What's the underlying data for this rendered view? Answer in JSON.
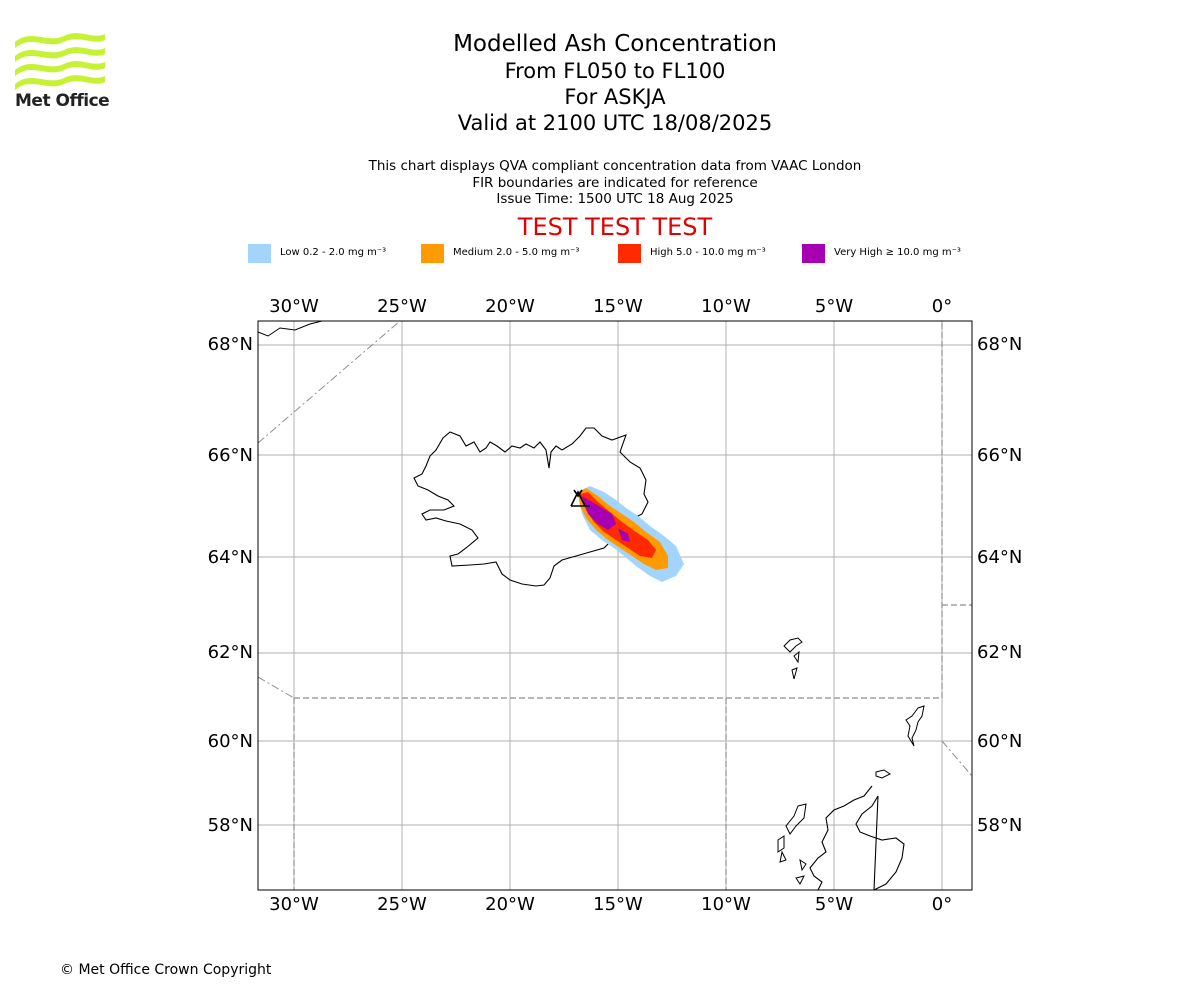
{
  "logo": {
    "text": "Met Office",
    "color": "#c6f135"
  },
  "title": {
    "line1": "Modelled Ash Concentration",
    "line2": "From FL050 to FL100",
    "line3": "For ASKJA",
    "line4": "Valid at 2100 UTC 18/08/2025"
  },
  "subtitle": {
    "line1": "This chart displays QVA compliant concentration data from VAAC London",
    "line2": "FIR boundaries are indicated for reference",
    "line3": "Issue Time: 1500 UTC 18 Aug 2025"
  },
  "test_banner": {
    "text": "TEST TEST TEST",
    "color": "#e00000"
  },
  "legend": [
    {
      "label": "Low 0.2 - 2.0 mg m⁻³",
      "color": "#a3d4fb"
    },
    {
      "label": "Medium 2.0 - 5.0 mg m⁻³",
      "color": "#ff9a00"
    },
    {
      "label": "High 5.0 - 10.0 mg m⁻³",
      "color": "#ff2a00"
    },
    {
      "label": "Very High ≥ 10.0 mg m⁻³",
      "color": "#a600b2"
    }
  ],
  "map": {
    "longitude_labels": [
      "30°W",
      "25°W",
      "20°W",
      "15°W",
      "10°W",
      "5°W",
      "0°"
    ],
    "latitude_labels": [
      "68°N",
      "66°N",
      "64°N",
      "62°N",
      "60°N",
      "58°N"
    ],
    "volcano": "ASKJA"
  },
  "copyright": "© Met Office Crown Copyright"
}
